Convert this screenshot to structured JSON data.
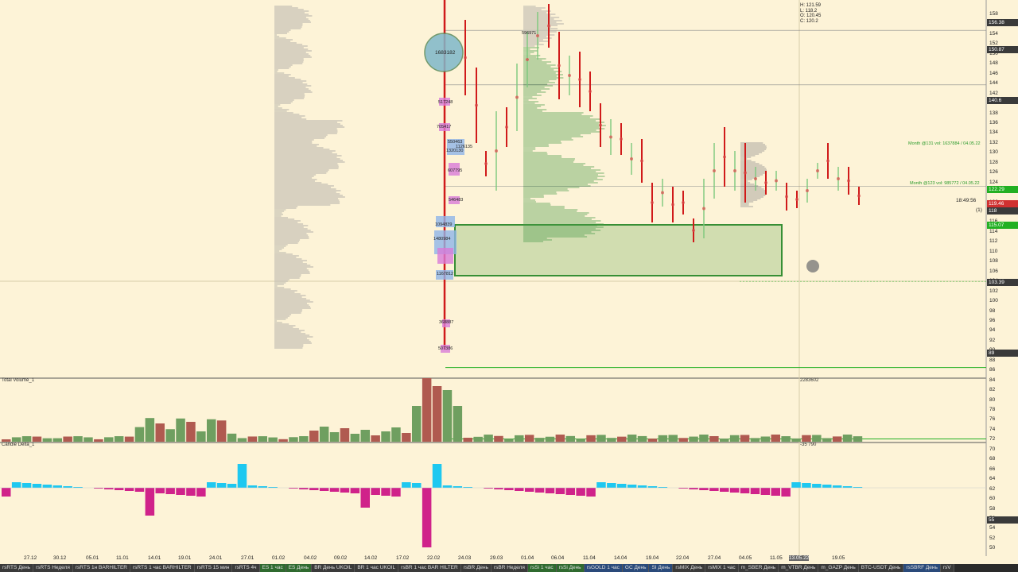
{
  "ohlc": {
    "h": "H: 121.59",
    "l": "L: 118.2",
    "o": "O: 120.45",
    "c": "C: 120.2"
  },
  "y_axis_labels": [
    "158",
    "156",
    "154",
    "152",
    "150",
    "148",
    "146",
    "144",
    "142",
    "140",
    "138",
    "136",
    "134",
    "132",
    "130",
    "128",
    "126",
    "124",
    "122",
    "120",
    "118",
    "116",
    "114",
    "112",
    "110",
    "108",
    "106",
    "104",
    "102",
    "100",
    "98",
    "96",
    "94",
    "92",
    "90",
    "88",
    "86",
    "84",
    "82",
    "80",
    "78",
    "76",
    "74",
    "72",
    "70",
    "68",
    "66",
    "64",
    "62",
    "60",
    "58",
    "56",
    "54",
    "52",
    "50"
  ],
  "price_markers": [
    {
      "text": "156.38",
      "bg": "#3a3a3a",
      "fg": "#fff"
    },
    {
      "text": "150.87",
      "bg": "#3a3a3a",
      "fg": "#fff"
    },
    {
      "text": "140.6",
      "bg": "#3a3a3a",
      "fg": "#fff"
    },
    {
      "text": "122.29",
      "bg": "#22b022",
      "fg": "#fff"
    },
    {
      "text": "119.46",
      "bg": "#d03030",
      "fg": "#fff"
    },
    {
      "text": "118",
      "bg": "#3a3a3a",
      "fg": "#fff"
    },
    {
      "text": "115.07",
      "bg": "#22b022",
      "fg": "#fff"
    },
    {
      "text": "103.39",
      "bg": "#3a3a3a",
      "fg": "#fff"
    },
    {
      "text": "89",
      "bg": "#3a3a3a",
      "fg": "#fff"
    },
    {
      "text": "55",
      "bg": "#3a3a3a",
      "fg": "#fff"
    }
  ],
  "x_axis_labels": [
    "27.12",
    "30.12",
    "05.01",
    "11.01",
    "14.01",
    "19.01",
    "24.01",
    "27.01",
    "01.02",
    "04.02",
    "09.02",
    "14.02",
    "17.02",
    "22.02",
    "24.03",
    "29.03",
    "01.04",
    "06.04",
    "11.04",
    "14.04",
    "19.04",
    "22.04",
    "27.04",
    "04.05",
    "11.05",
    "13.05.22",
    "19.05"
  ],
  "volume_labels": [
    "1683182",
    "517248",
    "705417",
    "550463",
    "1126135",
    "1320130",
    "607795",
    "546483",
    "1094839",
    "1480984",
    "1167812",
    "368887",
    "507386",
    "596971"
  ],
  "level_texts": [
    "Month @131 vol: 1637884 / 04.05.22",
    "Month @123 vol: 985772 / 04.05.22"
  ],
  "time_label": "18:49:56",
  "small_label": "(1)",
  "panels": {
    "volume_title": "Total Volume_1",
    "delta_title": "Candle Delta_1",
    "volume_max": "2283602",
    "delta_value": "-35 790"
  },
  "tabs": [
    {
      "label": "rsRTS День",
      "style": "a"
    },
    {
      "label": "rsRTS Неделя",
      "style": "a"
    },
    {
      "label": "rsRTS 1н BARHILTER",
      "style": "a"
    },
    {
      "label": "rsRTS 1 час BARHILTER",
      "style": "a"
    },
    {
      "label": "rsRTS 15 мин",
      "style": "a"
    },
    {
      "label": "rsRTS 4ч",
      "style": "a"
    },
    {
      "label": "ES 1 час",
      "style": "g"
    },
    {
      "label": "ES День",
      "style": "g"
    },
    {
      "label": "BR День UKOIL",
      "style": "a"
    },
    {
      "label": "BR 1 час UKOIL",
      "style": "a"
    },
    {
      "label": "rsBR 1 час BAR HILTER",
      "style": "a"
    },
    {
      "label": "rsBR День",
      "style": "a"
    },
    {
      "label": "rsBR Неделя",
      "style": "a"
    },
    {
      "label": "rsSi 1 час",
      "style": "g"
    },
    {
      "label": "rsSi День",
      "style": "g"
    },
    {
      "label": "rsGOLD 1 час",
      "style": "b"
    },
    {
      "label": "GC День",
      "style": "b"
    },
    {
      "label": "SI День",
      "style": "b"
    },
    {
      "label": "rsMIX День",
      "style": "a"
    },
    {
      "label": "rsMIX 1 час",
      "style": "a"
    },
    {
      "label": "m_SBER День",
      "style": "a"
    },
    {
      "label": "m_VTBR День",
      "style": "a"
    },
    {
      "label": "m_GAZP День",
      "style": "a"
    },
    {
      "label": "BTC-USDT День",
      "style": "a"
    },
    {
      "label": "rsSBRF День",
      "style": "b"
    },
    {
      "label": "rsV",
      "style": "a"
    }
  ],
  "colors": {
    "bg": "#fdf3d7",
    "up_bar": "#5fa05f",
    "down_bar": "#b05a50",
    "delta_pos": "#1ec8f0",
    "delta_neg": "#d0228a",
    "level_green": "#22b022",
    "candle_red": "#d01a1a"
  }
}
